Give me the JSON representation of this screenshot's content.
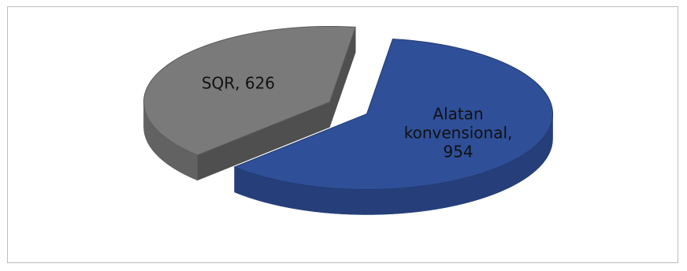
{
  "chart_data": {
    "type": "pie",
    "style": "3d-exploded",
    "title": "",
    "legend": "none",
    "slices": [
      {
        "name": "Alatan konvensional",
        "value": 954,
        "label_lines": [
          "Alatan",
          "konvensional,",
          "954"
        ],
        "color": "#2f4f98",
        "label_color": "#111111"
      },
      {
        "name": "SQR",
        "value": 626,
        "label_lines": [
          "SQR, 626"
        ],
        "color": "#7a7a7a",
        "label_color": "#111111"
      }
    ]
  }
}
